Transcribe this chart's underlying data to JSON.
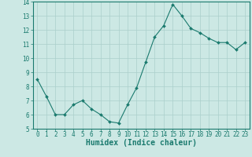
{
  "x": [
    0,
    1,
    2,
    3,
    4,
    5,
    6,
    7,
    8,
    9,
    10,
    11,
    12,
    13,
    14,
    15,
    16,
    17,
    18,
    19,
    20,
    21,
    22,
    23
  ],
  "y": [
    8.5,
    7.3,
    6.0,
    6.0,
    6.7,
    7.0,
    6.4,
    6.0,
    5.5,
    5.4,
    6.7,
    7.9,
    9.7,
    11.5,
    12.3,
    13.8,
    13.0,
    12.1,
    11.8,
    11.4,
    11.1,
    11.1,
    10.6,
    11.1
  ],
  "xlabel": "Humidex (Indice chaleur)",
  "ylabel": "",
  "xlim": [
    -0.5,
    23.5
  ],
  "ylim": [
    5,
    14
  ],
  "yticks": [
    5,
    6,
    7,
    8,
    9,
    10,
    11,
    12,
    13,
    14
  ],
  "xticks": [
    0,
    1,
    2,
    3,
    4,
    5,
    6,
    7,
    8,
    9,
    10,
    11,
    12,
    13,
    14,
    15,
    16,
    17,
    18,
    19,
    20,
    21,
    22,
    23
  ],
  "line_color": "#1a7a6e",
  "marker": "D",
  "marker_size": 2.0,
  "line_width": 0.8,
  "bg_color": "#cce8e4",
  "grid_color": "#aacfcb",
  "axis_color": "#1a7a6e",
  "label_color": "#1a7a6e",
  "xlabel_fontsize": 7.0,
  "tick_fontsize": 5.5
}
